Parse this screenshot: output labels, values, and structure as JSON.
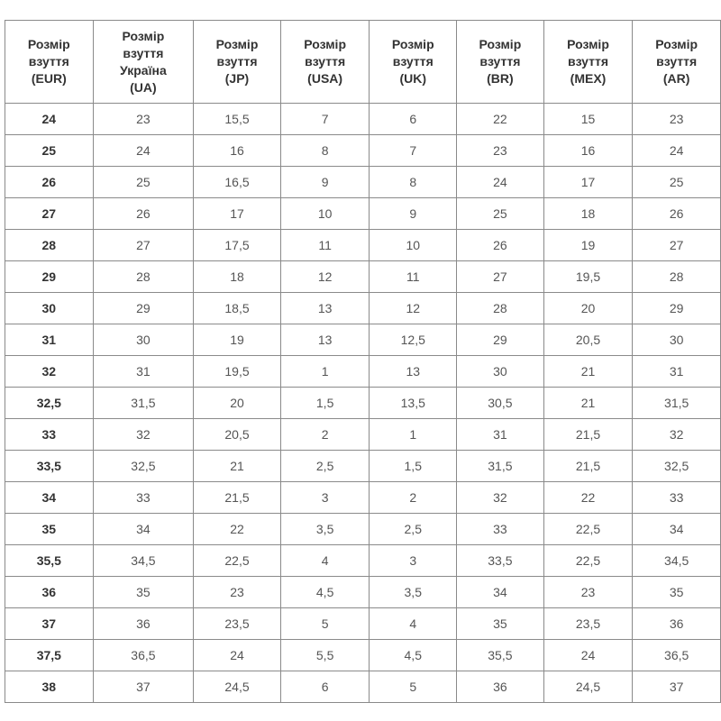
{
  "headers": [
    [
      "Розмір",
      "взуття",
      "(EUR)"
    ],
    [
      "Розмір",
      "взуття",
      "Україна",
      "(UA)"
    ],
    [
      "Розмір",
      "взуття",
      "(JP)"
    ],
    [
      "Розмір",
      "взуття",
      "(USA)"
    ],
    [
      "Розмір",
      "взуття",
      "(UK)"
    ],
    [
      "Розмір",
      "взуття",
      "(BR)"
    ],
    [
      "Розмір",
      "взуття",
      "(MEX)"
    ],
    [
      "Розмір",
      "взуття",
      "(AR)"
    ]
  ],
  "rows": [
    [
      "24",
      "23",
      "15,5",
      "7",
      "6",
      "22",
      "15",
      "23"
    ],
    [
      "25",
      "24",
      "16",
      "8",
      "7",
      "23",
      "16",
      "24"
    ],
    [
      "26",
      "25",
      "16,5",
      "9",
      "8",
      "24",
      "17",
      "25"
    ],
    [
      "27",
      "26",
      "17",
      "10",
      "9",
      "25",
      "18",
      "26"
    ],
    [
      "28",
      "27",
      "17,5",
      "11",
      "10",
      "26",
      "19",
      "27"
    ],
    [
      "29",
      "28",
      "18",
      "12",
      "11",
      "27",
      "19,5",
      "28"
    ],
    [
      "30",
      "29",
      "18,5",
      "13",
      "12",
      "28",
      "20",
      "29"
    ],
    [
      "31",
      "30",
      "19",
      "13",
      "12,5",
      "29",
      "20,5",
      "30"
    ],
    [
      "32",
      "31",
      "19,5",
      "1",
      "13",
      "30",
      "21",
      "31"
    ],
    [
      "32,5",
      "31,5",
      "20",
      "1,5",
      "13,5",
      "30,5",
      "21",
      "31,5"
    ],
    [
      "33",
      "32",
      "20,5",
      "2",
      "1",
      "31",
      "21,5",
      "32"
    ],
    [
      "33,5",
      "32,5",
      "21",
      "2,5",
      "1,5",
      "31,5",
      "21,5",
      "32,5"
    ],
    [
      "34",
      "33",
      "21,5",
      "3",
      "2",
      "32",
      "22",
      "33"
    ],
    [
      "35",
      "34",
      "22",
      "3,5",
      "2,5",
      "33",
      "22,5",
      "34"
    ],
    [
      "35,5",
      "34,5",
      "22,5",
      "4",
      "3",
      "33,5",
      "22,5",
      "34,5"
    ],
    [
      "36",
      "35",
      "23",
      "4,5",
      "3,5",
      "34",
      "23",
      "35"
    ],
    [
      "37",
      "36",
      "23,5",
      "5",
      "4",
      "35",
      "23,5",
      "36"
    ],
    [
      "37,5",
      "36,5",
      "24",
      "5,5",
      "4,5",
      "35,5",
      "24",
      "36,5"
    ],
    [
      "38",
      "37",
      "24,5",
      "6",
      "5",
      "36",
      "24,5",
      "37"
    ]
  ]
}
